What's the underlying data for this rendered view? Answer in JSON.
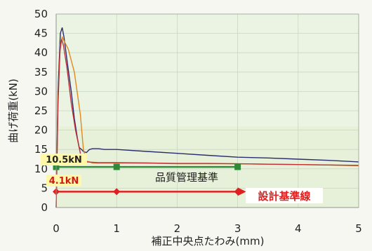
{
  "chart_data": {
    "type": "line",
    "xlabel": "補正中央点たわみ(mm)",
    "ylabel": "曲げ荷重(kN)",
    "xlim": [
      0,
      5
    ],
    "ylim": [
      0,
      50
    ],
    "xticks": [
      "0",
      "1",
      "2",
      "3",
      "4",
      "5"
    ],
    "yticks": [
      "0",
      "5",
      "10",
      "15",
      "20",
      "25",
      "30",
      "35",
      "40",
      "45",
      "50"
    ],
    "grid": true,
    "bands": [
      {
        "y_from": 0,
        "y_to": 21,
        "color": "#e7f1da"
      },
      {
        "y_from": 21,
        "y_to": 50,
        "color": "#ebf4e3"
      }
    ],
    "series": [
      {
        "color": "#2a2c70",
        "x": [
          0,
          0.03,
          0.07,
          0.1,
          0.13,
          0.18,
          0.25,
          0.3,
          0.35,
          0.38,
          0.42,
          0.45,
          0.5,
          0.55,
          0.6,
          0.7,
          0.8,
          1.0,
          1.5,
          2.0,
          2.5,
          3.0,
          3.5,
          4.0,
          4.5,
          5.0
        ],
        "y": [
          0,
          30,
          45,
          46.5,
          44,
          38,
          30,
          23,
          18,
          15.5,
          15,
          14.5,
          14.2,
          15,
          15.2,
          15.2,
          15,
          15,
          14.5,
          14,
          13.5,
          13,
          12.8,
          12.5,
          12.2,
          11.8
        ]
      },
      {
        "color": "#e08a1e",
        "x": [
          0,
          0.03,
          0.07,
          0.1,
          0.15,
          0.2,
          0.3,
          0.4,
          0.45,
          0.5,
          0.55,
          0.6,
          0.8,
          1.0,
          1.5,
          2.0,
          2.5,
          3.0,
          3.5,
          4.0,
          4.5,
          5.0
        ],
        "y": [
          0,
          28,
          42,
          44,
          42.5,
          41,
          35,
          24,
          15,
          12,
          11.8,
          11.5,
          11.5,
          11.5,
          11.5,
          11.3,
          11.3,
          11.3,
          11.2,
          11.1,
          11.0,
          10.8
        ]
      },
      {
        "color": "#c0303a",
        "x": [
          0,
          0.03,
          0.06,
          0.09,
          0.12,
          0.18,
          0.25,
          0.32,
          0.4,
          0.45,
          0.5,
          0.7,
          1.0,
          1.5,
          2.0,
          2.5,
          3.0,
          3.5,
          4.0,
          4.5,
          5.0
        ],
        "y": [
          0,
          26,
          40,
          43.5,
          42,
          36,
          27,
          20,
          14,
          12,
          11.8,
          11.6,
          11.6,
          11.5,
          11.4,
          11.4,
          11.3,
          11.2,
          11.1,
          11.0,
          10.9
        ]
      }
    ],
    "reference_lines": [
      {
        "label": "品質管理基準",
        "value_label": "10.5kN",
        "y": 10.5,
        "color": "#2e8a36",
        "marker_x": [
          0,
          1,
          3
        ],
        "marker": "square"
      },
      {
        "label": "設計基準線",
        "value_label": "4.1kN",
        "y": 4.1,
        "color": "#e02020",
        "marker_x": [
          0,
          1,
          3
        ],
        "marker": "diamond"
      }
    ]
  }
}
